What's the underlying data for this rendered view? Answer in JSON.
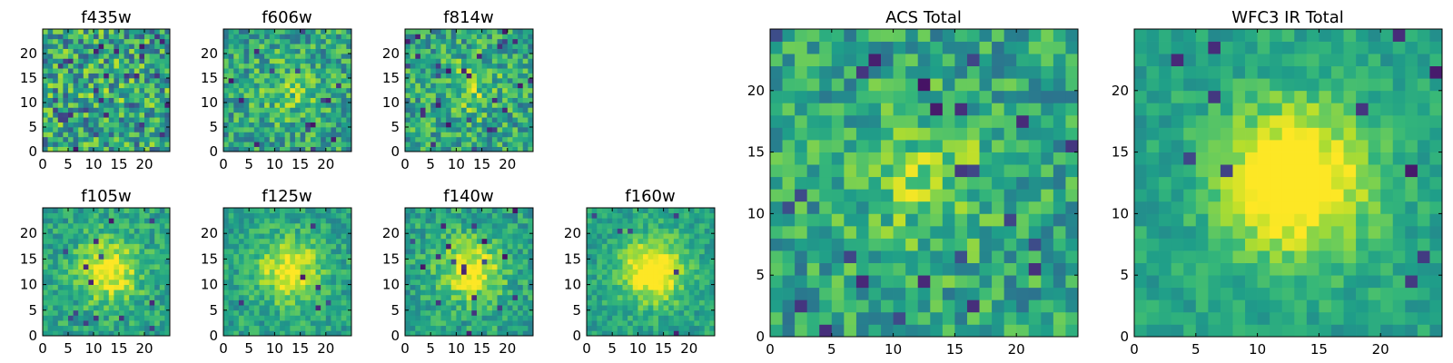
{
  "chart_data": [
    {
      "type": "heatmap",
      "title": "f435w",
      "colormap": "viridis",
      "size": 25,
      "seed": 101,
      "peak": 0.04,
      "noise": 0.62,
      "dark_prob": 0.05,
      "xticks": [
        0,
        5,
        10,
        15,
        20
      ],
      "yticks": [
        0,
        5,
        10,
        15,
        20
      ],
      "xlim": [
        0,
        25
      ],
      "ylim": [
        0,
        25
      ]
    },
    {
      "type": "heatmap",
      "title": "f606w",
      "colormap": "viridis",
      "size": 25,
      "seed": 202,
      "peak": 0.18,
      "noise": 0.48,
      "dark_prob": 0.04,
      "xticks": [
        0,
        5,
        10,
        15,
        20
      ],
      "yticks": [
        0,
        5,
        10,
        15,
        20
      ],
      "xlim": [
        0,
        25
      ],
      "ylim": [
        0,
        25
      ]
    },
    {
      "type": "heatmap",
      "title": "f814w",
      "colormap": "viridis",
      "size": 25,
      "seed": 303,
      "peak": 0.2,
      "noise": 0.48,
      "dark_prob": 0.04,
      "xticks": [
        0,
        5,
        10,
        15,
        20
      ],
      "yticks": [
        0,
        5,
        10,
        15,
        20
      ],
      "xlim": [
        0,
        25
      ],
      "ylim": [
        0,
        25
      ]
    },
    {
      "type": "heatmap",
      "title": "f105w",
      "colormap": "viridis",
      "size": 25,
      "seed": 404,
      "peak": 0.45,
      "noise": 0.32,
      "dark_prob": 0.02,
      "xticks": [
        0,
        5,
        10,
        15,
        20
      ],
      "yticks": [
        0,
        5,
        10,
        15,
        20
      ],
      "xlim": [
        0,
        25
      ],
      "ylim": [
        0,
        25
      ]
    },
    {
      "type": "heatmap",
      "title": "f125w",
      "colormap": "viridis",
      "size": 25,
      "seed": 505,
      "peak": 0.45,
      "noise": 0.3,
      "dark_prob": 0.02,
      "xticks": [
        0,
        5,
        10,
        15,
        20
      ],
      "yticks": [
        0,
        5,
        10,
        15,
        20
      ],
      "xlim": [
        0,
        25
      ],
      "ylim": [
        0,
        25
      ]
    },
    {
      "type": "heatmap",
      "title": "f140w",
      "colormap": "viridis",
      "size": 25,
      "seed": 606,
      "peak": 0.45,
      "noise": 0.33,
      "dark_prob": 0.03,
      "xticks": [
        0,
        5,
        10,
        15,
        20
      ],
      "yticks": [
        0,
        5,
        10,
        15,
        20
      ],
      "xlim": [
        0,
        25
      ],
      "ylim": [
        0,
        25
      ]
    },
    {
      "type": "heatmap",
      "title": "f160w",
      "colormap": "viridis",
      "size": 25,
      "seed": 707,
      "peak": 0.55,
      "noise": 0.26,
      "dark_prob": 0.01,
      "xticks": [
        0,
        5,
        10,
        15,
        20
      ],
      "yticks": [
        0,
        5,
        10,
        15,
        20
      ],
      "xlim": [
        0,
        25
      ],
      "ylim": [
        0,
        25
      ]
    },
    {
      "type": "heatmap",
      "title": "ACS Total",
      "colormap": "viridis",
      "size": 25,
      "seed": 808,
      "peak": 0.22,
      "noise": 0.42,
      "dark_prob": 0.035,
      "xticks": [
        0,
        5,
        10,
        15,
        20
      ],
      "yticks": [
        0,
        5,
        10,
        15,
        20
      ],
      "xlim": [
        0,
        25
      ],
      "ylim": [
        0,
        25
      ]
    },
    {
      "type": "heatmap",
      "title": "WFC3 IR Total",
      "colormap": "viridis",
      "size": 25,
      "seed": 909,
      "peak": 0.6,
      "noise": 0.22,
      "dark_prob": 0.015,
      "xticks": [
        0,
        5,
        10,
        15,
        20
      ],
      "yticks": [
        0,
        5,
        10,
        15,
        20
      ],
      "xlim": [
        0,
        25
      ],
      "ylim": [
        0,
        25
      ]
    }
  ]
}
